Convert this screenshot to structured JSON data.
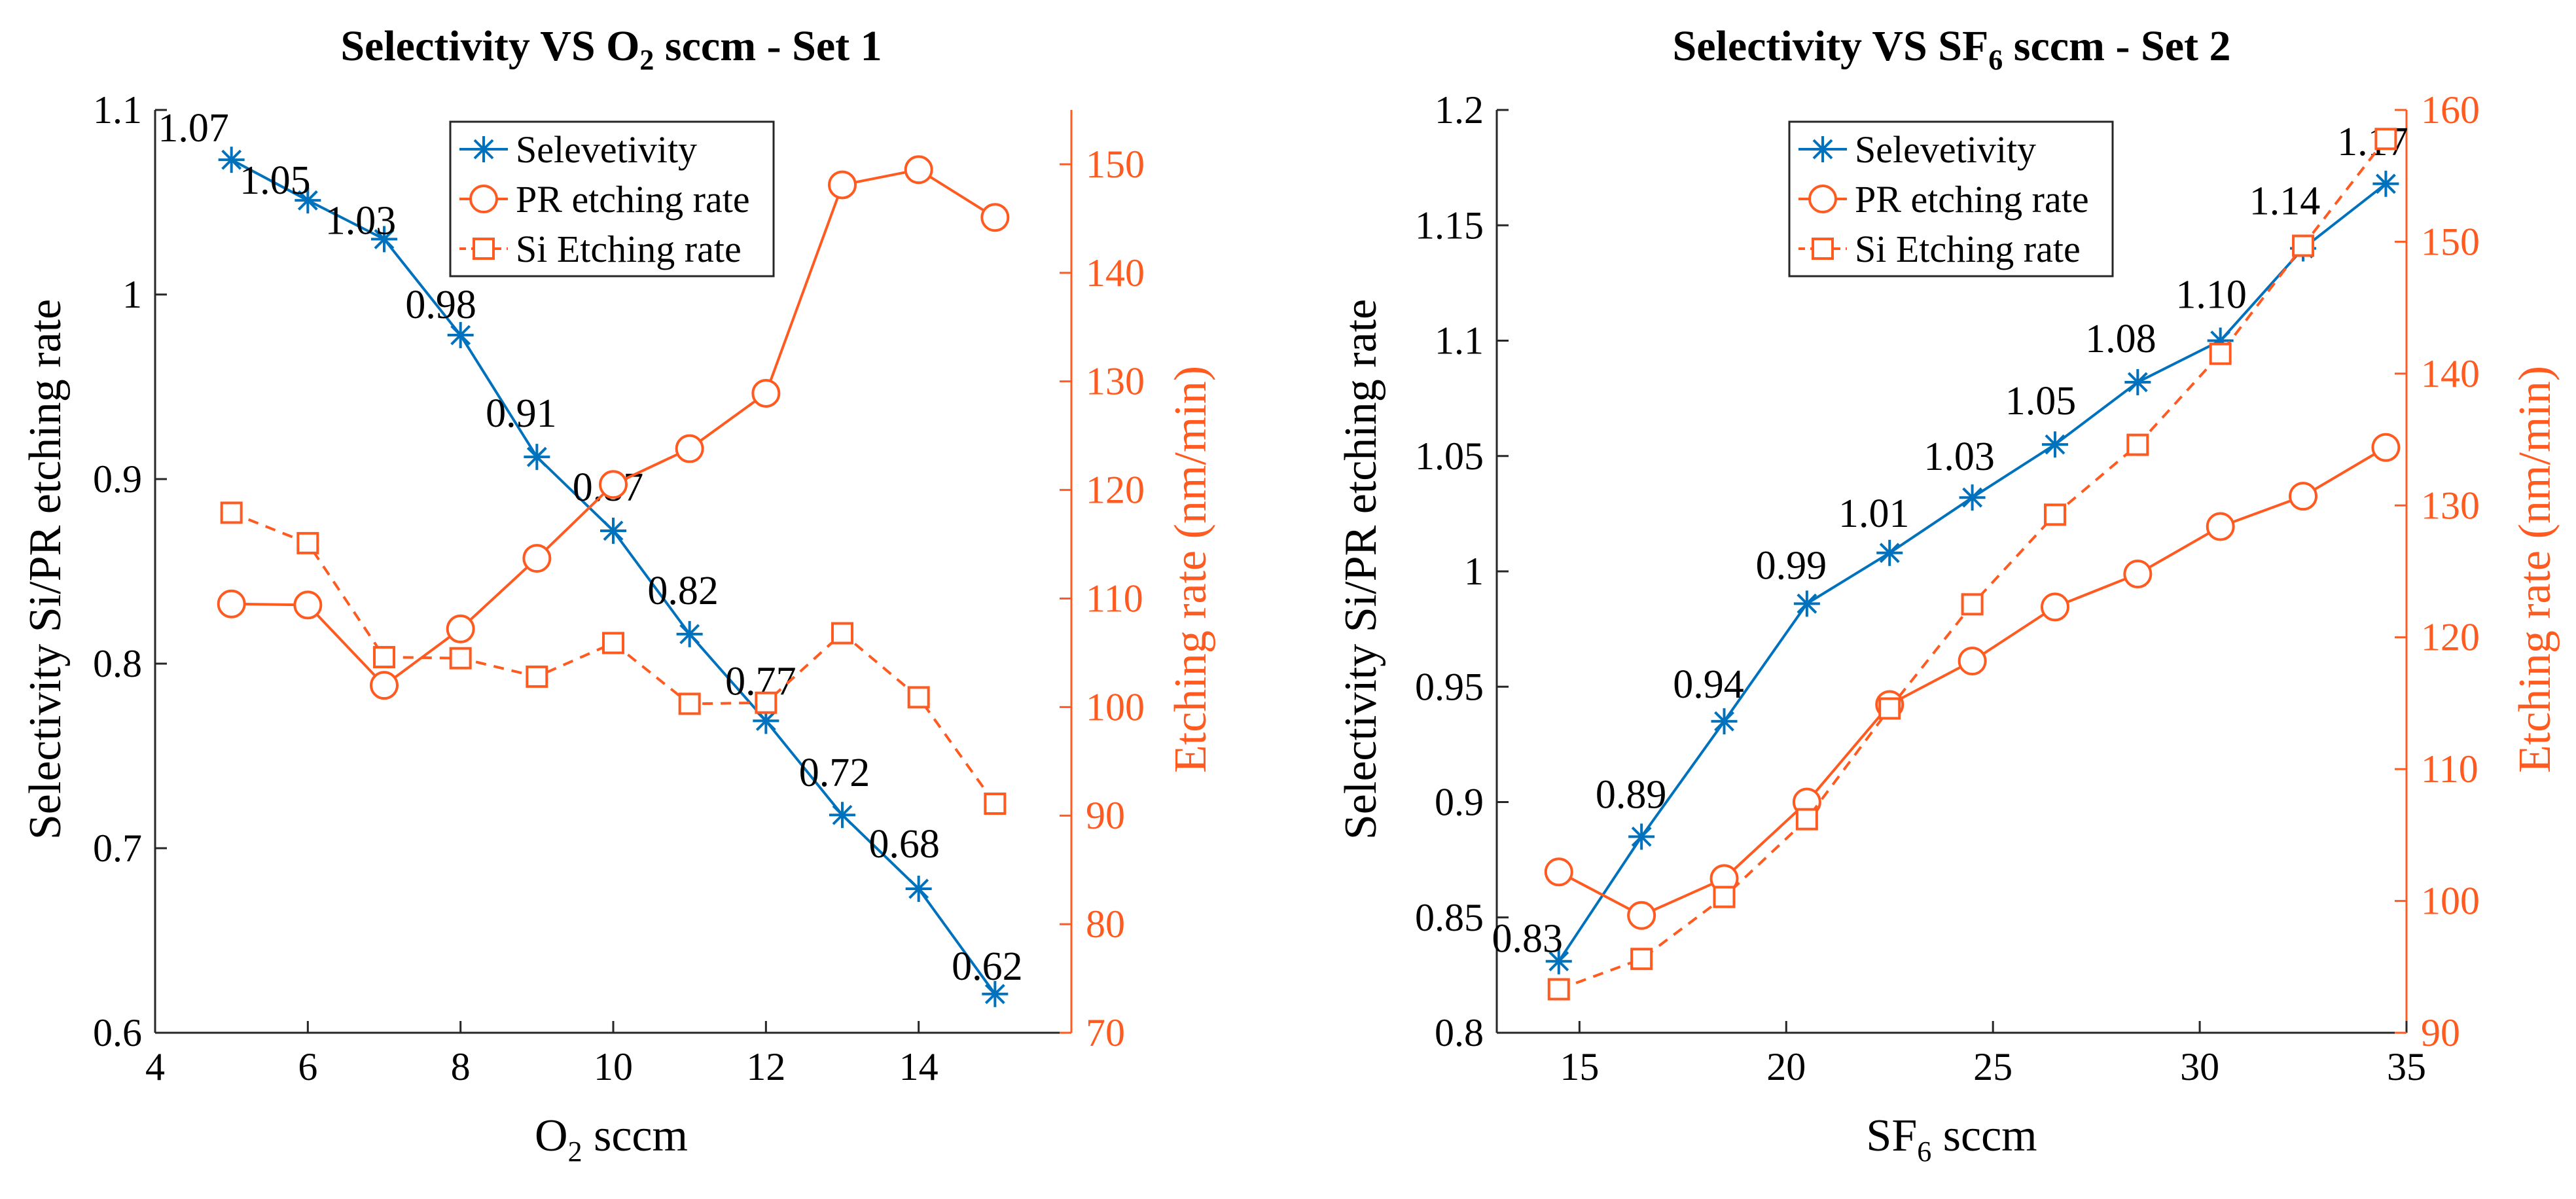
{
  "colors": {
    "selectivity": "#0072BD",
    "etching": "#FF5A1F",
    "axis": "#262626"
  },
  "chart_data": [
    {
      "type": "line",
      "title": "Selectivity VS O2 sccm - Set 1",
      "title_parts": {
        "pre": "Selectivity VS O",
        "sub": "2",
        "post": " sccm - Set 1"
      },
      "xlabel_parts": {
        "pre": "O",
        "sub": "2",
        "post": " sccm"
      },
      "ylabel_left": "Selectivity Si/PR etching rate",
      "ylabel_right": "Etching rate (nm/min)",
      "xlim": [
        4,
        16
      ],
      "xticks": [
        4,
        6,
        8,
        10,
        12,
        14
      ],
      "ylim_left": [
        0.6,
        1.1
      ],
      "yticks_left": [
        "0.6",
        "0.7",
        "0.8",
        "0.9",
        "1",
        "1.1"
      ],
      "ylim_right": [
        70,
        155
      ],
      "yticks_right": [
        "70",
        "80",
        "90",
        "100",
        "110",
        "120",
        "130",
        "140",
        "150"
      ],
      "legend": [
        "Selevetivity",
        "PR etching rate",
        "Si Etching rate"
      ],
      "series": [
        {
          "name": "Selevetivity",
          "axis": "left",
          "marker": "star",
          "line": "solid",
          "x": [
            5,
            6,
            7,
            8,
            9,
            10,
            11,
            12,
            13,
            14,
            15
          ],
          "values": [
            1.073,
            1.051,
            1.03,
            0.978,
            0.912,
            0.872,
            0.816,
            0.769,
            0.718,
            0.678,
            0.621
          ],
          "labels": [
            "1.07",
            "1.05",
            "1.03",
            "0.98",
            "0.91",
            "0.87",
            "0.82",
            "0.77",
            "0.72",
            "0.68",
            "0.62"
          ]
        },
        {
          "name": "PR etching rate",
          "axis": "right",
          "marker": "circle",
          "line": "solid",
          "x": [
            5,
            6,
            7,
            8,
            9,
            10,
            11,
            12,
            13,
            14,
            15
          ],
          "values": [
            109.5,
            109.4,
            102,
            107.2,
            113.7,
            120.5,
            123.8,
            128.9,
            148.1,
            149.5,
            145.1
          ]
        },
        {
          "name": "Si Etching rate",
          "axis": "right",
          "marker": "square",
          "line": "dashed",
          "x": [
            5,
            6,
            7,
            8,
            9,
            10,
            11,
            12,
            13,
            14,
            15
          ],
          "values": [
            117.9,
            115.1,
            104.6,
            104.5,
            102.8,
            105.9,
            100.3,
            100.4,
            106.8,
            100.9,
            91.1
          ]
        }
      ]
    },
    {
      "type": "line",
      "title": "Selectivity VS SF6 sccm - Set 2",
      "title_parts": {
        "pre": "Selectivity VS SF",
        "sub": "6",
        "post": " sccm - Set 2"
      },
      "xlabel_parts": {
        "pre": "SF",
        "sub": "6",
        "post": " sccm"
      },
      "ylabel_left": "Selectivity Si/PR etching rate",
      "ylabel_right": "Etching rate (nm/min)",
      "xlim": [
        13,
        35
      ],
      "xticks": [
        15,
        20,
        25,
        30,
        35
      ],
      "ylim_left": [
        0.8,
        1.2
      ],
      "yticks_left": [
        "0.8",
        "0.85",
        "0.9",
        "0.95",
        "1",
        "1.05",
        "1.1",
        "1.15",
        "1.2"
      ],
      "ylim_right": [
        90,
        160
      ],
      "yticks_right": [
        "90",
        "100",
        "110",
        "120",
        "130",
        "140",
        "150",
        "160"
      ],
      "legend": [
        "Selevetivity",
        "PR etching rate",
        "Si Etching rate"
      ],
      "series": [
        {
          "name": "Selevetivity",
          "axis": "left",
          "marker": "star",
          "line": "solid",
          "x": [
            14.5,
            16.5,
            18.5,
            20.5,
            22.5,
            24.5,
            26.5,
            28.5,
            30.5,
            32.5,
            34.5
          ],
          "values": [
            0.831,
            0.885,
            0.935,
            0.986,
            1.008,
            1.032,
            1.055,
            1.082,
            1.1,
            1.14,
            1.168
          ],
          "labels": [
            "0.83",
            "0.89",
            "0.94",
            "0.99",
            "1.01",
            "1.03",
            "1.05",
            "1.08",
            "1.10",
            "1.14",
            "1.17"
          ]
        },
        {
          "name": "PR etching rate",
          "axis": "right",
          "marker": "circle",
          "line": "solid",
          "x": [
            14.5,
            16.5,
            18.5,
            20.5,
            22.5,
            24.5,
            26.5,
            28.5,
            30.5,
            32.5,
            34.5
          ],
          "values": [
            102.2,
            98.9,
            101.7,
            107.5,
            114.9,
            118.2,
            122.3,
            124.8,
            128.4,
            130.7,
            134.4
          ]
        },
        {
          "name": "Si Etching rate",
          "axis": "right",
          "marker": "square",
          "line": "dashed",
          "x": [
            14.5,
            16.5,
            18.5,
            20.5,
            22.5,
            24.5,
            26.5,
            28.5,
            30.5,
            32.5,
            34.5
          ],
          "values": [
            93.3,
            95.6,
            100.3,
            106.2,
            114.6,
            122.5,
            129.3,
            134.6,
            141.5,
            149.7,
            157.8
          ]
        }
      ]
    }
  ],
  "extra_labels": {
    "left_ytick_0_85": "0.85"
  }
}
